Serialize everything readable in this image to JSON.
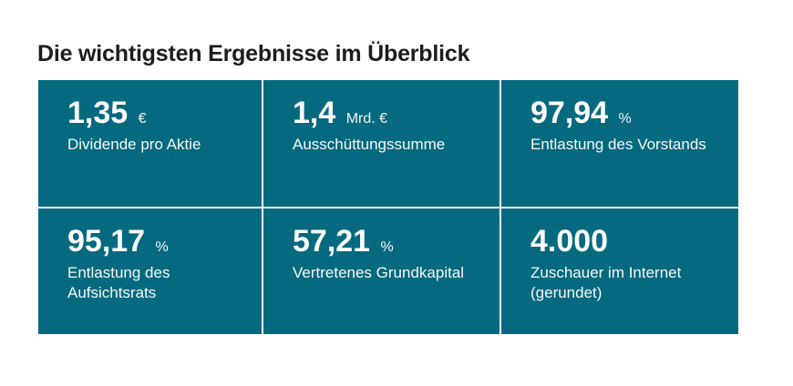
{
  "page": {
    "background_color": "#ffffff"
  },
  "colors": {
    "tile_background": "#056a80",
    "title_text": "#1d1d1b",
    "tile_text": "#ffffff",
    "tile_gap": "#ffffff"
  },
  "chart_data": {
    "type": "table",
    "title": "Die wichtigsten Ergebnisse im Überblick",
    "layout": "kpi-tile-grid-3x2",
    "items": [
      {
        "display": "1,35",
        "value": 1.35,
        "unit": "€",
        "label": "Dividende pro Aktie",
        "label_display": "Dividende pro Aktie"
      },
      {
        "display": "1,4",
        "value": 1.4,
        "unit": "Mrd. €",
        "label": "Ausschüttungssumme",
        "label_display": "Ausschüttungssumme"
      },
      {
        "display": "97,94",
        "value": 97.94,
        "unit": "%",
        "label": "Entlastung des Vorstands",
        "label_display": "Entlastung des Vorstands"
      },
      {
        "display": "95,17",
        "value": 95.17,
        "unit": "%",
        "label": "Entlastung des Aufsichtsrats",
        "label_display": "Entlastung des\nAufsichtsrats"
      },
      {
        "display": "57,21",
        "value": 57.21,
        "unit": "%",
        "label": "Vertretenes Grundkapital",
        "label_display": "Vertretenes Grundkapital"
      },
      {
        "display": "4.000",
        "value": 4000,
        "unit": "",
        "label": "Zuschauer im Internet (gerundet)",
        "label_display": "Zuschauer im Internet\n(gerundet)"
      }
    ]
  }
}
